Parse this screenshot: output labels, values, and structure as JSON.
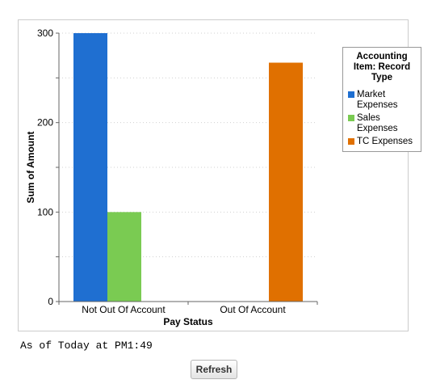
{
  "chart_data": {
    "type": "bar",
    "xlabel": "Pay Status",
    "ylabel": "Sum of Amount",
    "ylim": [
      0,
      300
    ],
    "yticks": [
      0,
      100,
      200,
      300
    ],
    "grid": true,
    "legend_placement": "top-right",
    "legend_title": "Accounting Item: Record Type",
    "categories": [
      "Not Out Of Account",
      "Out Of Account"
    ],
    "series": [
      {
        "name": "Market Expenses",
        "color": "#1f6fd1",
        "values": [
          300,
          0
        ]
      },
      {
        "name": "Sales Expenses",
        "color": "#7acb52",
        "values": [
          100,
          0
        ]
      },
      {
        "name": "TC Expenses",
        "color": "#e07000",
        "values": [
          0,
          267
        ]
      }
    ]
  },
  "footer": {
    "timestamp": "As of Today at PM1:49",
    "refresh_label": "Refresh"
  }
}
